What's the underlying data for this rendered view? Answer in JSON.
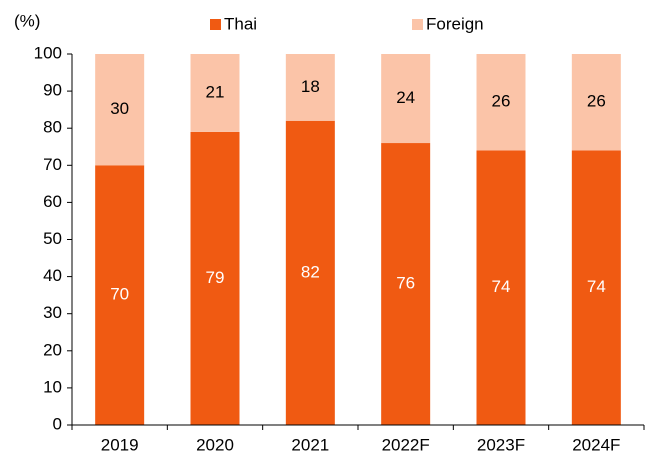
{
  "chart_data": {
    "type": "stacked_bar",
    "y_label": "(%)",
    "categories": [
      "2019",
      "2020",
      "2021",
      "2022F",
      "2023F",
      "2024F"
    ],
    "series": [
      {
        "name": "Thai",
        "color": "#f05a12",
        "values": [
          70,
          79,
          82,
          76,
          74,
          74
        ]
      },
      {
        "name": "Foreign",
        "color": "#fbc4a8",
        "values": [
          30,
          21,
          18,
          24,
          26,
          26
        ]
      }
    ],
    "ylim": [
      0,
      100
    ],
    "yticks": [
      0,
      10,
      20,
      30,
      40,
      50,
      60,
      70,
      80,
      90,
      100
    ],
    "legend": "top"
  }
}
